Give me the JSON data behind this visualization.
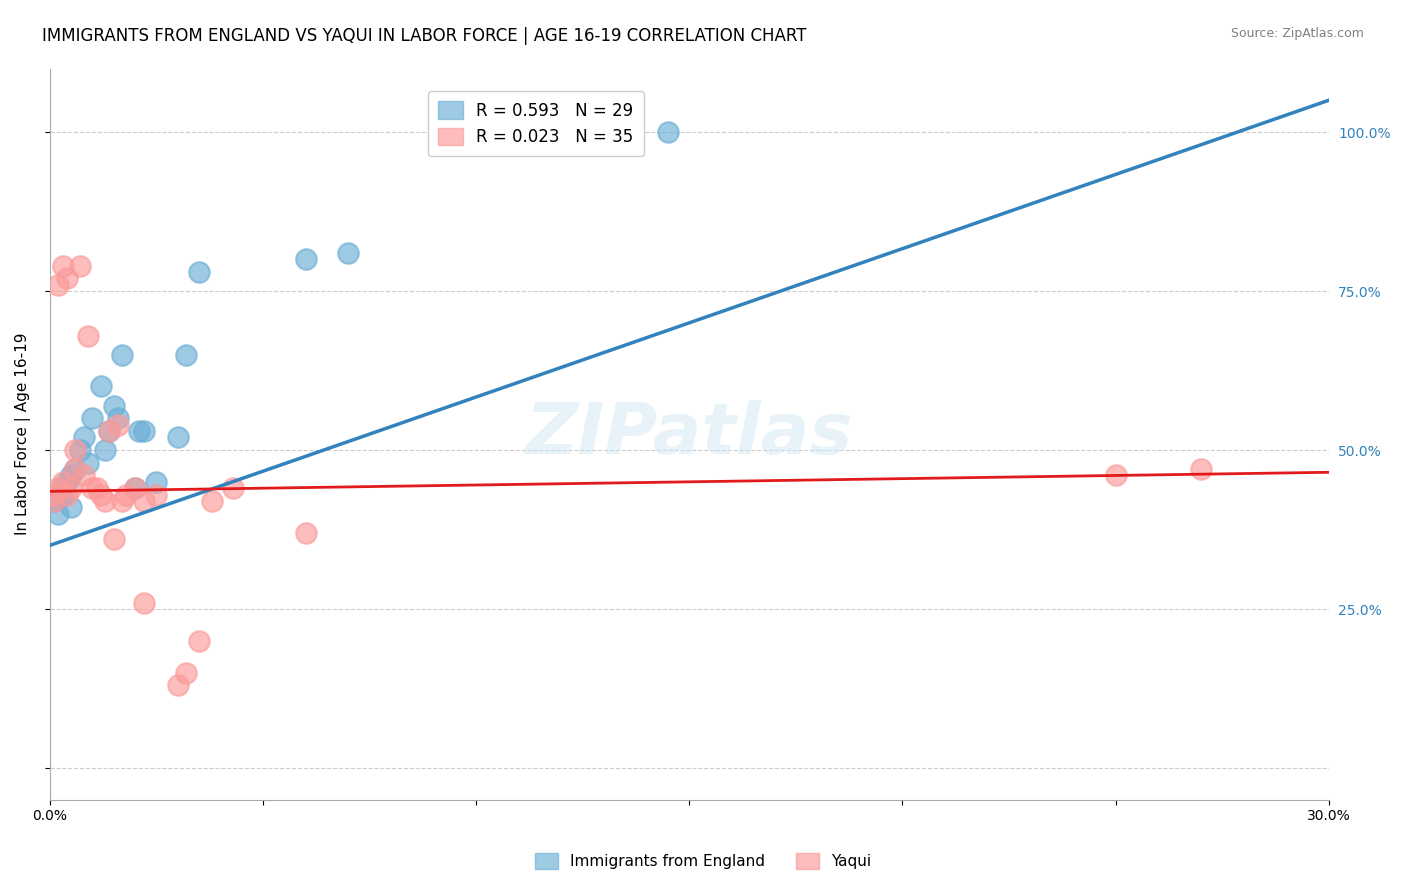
{
  "title": "IMMIGRANTS FROM ENGLAND VS YAQUI IN LABOR FORCE | AGE 16-19 CORRELATION CHART",
  "source": "Source: ZipAtlas.com",
  "xlabel": "",
  "ylabel": "In Labor Force | Age 16-19",
  "xlim": [
    0.0,
    0.3
  ],
  "ylim": [
    -0.05,
    1.1
  ],
  "yticks": [
    0.0,
    0.25,
    0.5,
    0.75,
    1.0
  ],
  "ytick_labels": [
    "",
    "25.0%",
    "50.0%",
    "75.0%",
    "100.0%"
  ],
  "xticks": [
    0.0,
    0.05,
    0.1,
    0.15,
    0.2,
    0.25,
    0.3
  ],
  "xtick_labels": [
    "0.0%",
    "",
    "",
    "",
    "",
    "",
    "30.0%"
  ],
  "england_R": 0.593,
  "england_N": 29,
  "yaqui_R": 0.023,
  "yaqui_N": 35,
  "england_color": "#6baed6",
  "yaqui_color": "#fb9a99",
  "england_line_color": "#3182bd",
  "yaqui_line_color": "#e31a1c",
  "watermark": "ZIPatlas",
  "england_scatter_x": [
    0.001,
    0.002,
    0.003,
    0.003,
    0.004,
    0.005,
    0.005,
    0.006,
    0.007,
    0.008,
    0.009,
    0.01,
    0.012,
    0.013,
    0.014,
    0.015,
    0.016,
    0.017,
    0.02,
    0.021,
    0.022,
    0.025,
    0.03,
    0.032,
    0.035,
    0.06,
    0.07,
    0.13,
    0.145
  ],
  "england_scatter_y": [
    0.42,
    0.4,
    0.44,
    0.43,
    0.45,
    0.41,
    0.46,
    0.47,
    0.5,
    0.52,
    0.48,
    0.55,
    0.6,
    0.5,
    0.53,
    0.57,
    0.55,
    0.65,
    0.44,
    0.53,
    0.53,
    0.45,
    0.52,
    0.65,
    0.78,
    0.8,
    0.81,
    1.0,
    1.0
  ],
  "yaqui_scatter_x": [
    0.001,
    0.001,
    0.002,
    0.002,
    0.003,
    0.003,
    0.004,
    0.004,
    0.005,
    0.006,
    0.006,
    0.007,
    0.008,
    0.009,
    0.01,
    0.011,
    0.012,
    0.013,
    0.014,
    0.015,
    0.016,
    0.017,
    0.018,
    0.02,
    0.022,
    0.022,
    0.025,
    0.03,
    0.032,
    0.035,
    0.038,
    0.043,
    0.06,
    0.25,
    0.27
  ],
  "yaqui_scatter_y": [
    0.43,
    0.42,
    0.44,
    0.76,
    0.79,
    0.45,
    0.43,
    0.77,
    0.44,
    0.47,
    0.5,
    0.79,
    0.46,
    0.68,
    0.44,
    0.44,
    0.43,
    0.42,
    0.53,
    0.36,
    0.54,
    0.42,
    0.43,
    0.44,
    0.42,
    0.26,
    0.43,
    0.13,
    0.15,
    0.2,
    0.42,
    0.44,
    0.37,
    0.46,
    0.47
  ],
  "england_trend_x": [
    0.0,
    0.3
  ],
  "england_trend_y": [
    0.35,
    1.05
  ],
  "yaqui_trend_x": [
    0.0,
    0.3
  ],
  "yaqui_trend_y": [
    0.435,
    0.465
  ],
  "background_color": "#ffffff",
  "grid_color": "#cccccc",
  "axis_color": "#aaaaaa",
  "right_tick_color": "#3182bd",
  "title_fontsize": 12,
  "label_fontsize": 11,
  "tick_fontsize": 10,
  "legend_fontsize": 12
}
